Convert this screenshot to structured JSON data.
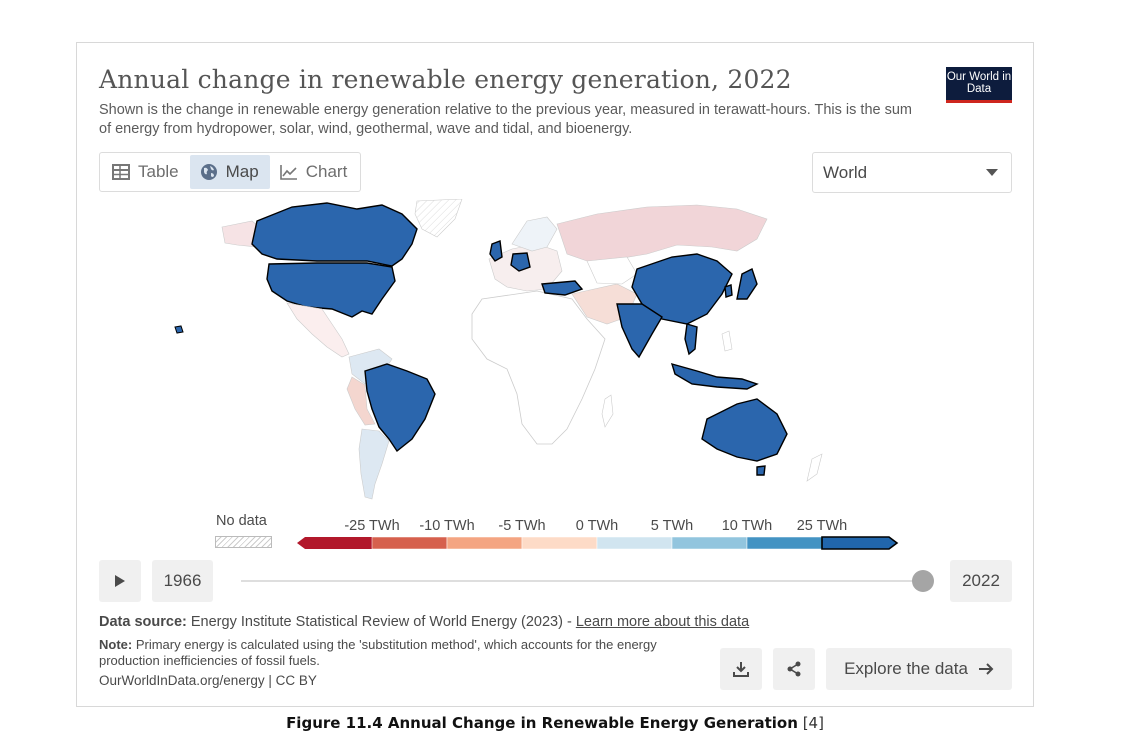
{
  "header": {
    "title": "Annual change in renewable energy generation, 2022",
    "subtitle": "Shown is the change in renewable energy generation relative to the previous year, measured in terawatt-hours. This is the sum of energy from hydropower, solar, wind, geothermal, wave and tidal, and bioenergy.",
    "logo_text": "Our World in Data"
  },
  "tabs": [
    {
      "label": "Table",
      "icon": "table-icon"
    },
    {
      "label": "Map",
      "icon": "globe-icon",
      "active": true
    },
    {
      "label": "Chart",
      "icon": "line-chart-icon"
    }
  ],
  "region_select": {
    "value": "World"
  },
  "legend": {
    "no_data_label": "No data",
    "ticks": [
      "-25 TWh",
      "-10 TWh",
      "-5 TWh",
      "0 TWh",
      "5 TWh",
      "10 TWh",
      "25 TWh"
    ],
    "bin_colors": [
      "#b2182b",
      "#d6604d",
      "#f4a582",
      "#fddbc7",
      "#d1e5f0",
      "#92c5de",
      "#4393c3",
      "#2166ac"
    ]
  },
  "timeline": {
    "start_year": "1966",
    "end_year": "2022",
    "position": 1.0
  },
  "footer": {
    "source_label": "Data source:",
    "source_text": "Energy Institute Statistical Review of World Energy (2023) - ",
    "source_link": "Learn more about this data",
    "note_label": "Note:",
    "note_text": "Primary energy is calculated using the 'substitution method', which accounts for the energy production inefficiencies of fossil fuels.",
    "citation": "OurWorldInData.org/energy | CC BY",
    "explore_label": "Explore the data"
  },
  "caption": {
    "text": "Figure 11.4 Annual Change in Renewable Energy Generation",
    "ref": "[4]"
  },
  "colors": {
    "high": "#2b66ad",
    "border": "#000000",
    "slight_negative": "#f1d5d8",
    "neutral": "#ffffff",
    "slight_positive": "#d5e4f0"
  }
}
